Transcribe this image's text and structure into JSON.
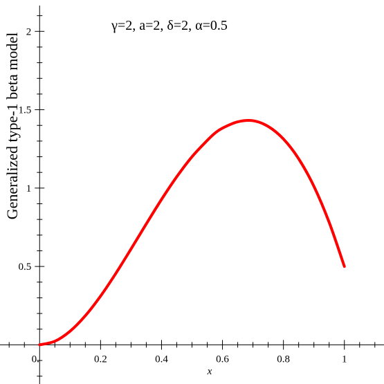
{
  "chart_data": {
    "type": "line",
    "title": "",
    "annotation": "γ=2, a=2, δ=2, α=0.5",
    "xlabel": "x",
    "ylabel": "Generalized type-1 beta model",
    "xlim": [
      -0.13,
      1.13
    ],
    "ylim": [
      -0.25,
      2.2
    ],
    "grid": false,
    "x_ticks": [
      0.2,
      0.4,
      0.6,
      0.8,
      1
    ],
    "x_tick_labels": [
      "0.2",
      "0.4",
      "0.6",
      "0.8",
      "1"
    ],
    "y_ticks": [
      0.5,
      1,
      1.5,
      2
    ],
    "y_tick_labels": [
      "0.5",
      "1",
      "1.5",
      "2"
    ],
    "origin_label": "0.",
    "series": [
      {
        "color": "#ff0000",
        "x": [
          0,
          0.05,
          0.1,
          0.15,
          0.2,
          0.25,
          0.3,
          0.35,
          0.4,
          0.45,
          0.5,
          0.55,
          0.575,
          0.6,
          0.65,
          0.7,
          0.75,
          0.8,
          0.85,
          0.9,
          0.95,
          1
        ],
        "y": [
          0,
          0.0227,
          0.087,
          0.1856,
          0.311,
          0.4556,
          0.6116,
          0.7716,
          0.9276,
          1.0724,
          1.2,
          1.3041,
          1.35,
          1.3826,
          1.4229,
          1.4299,
          1.3932,
          1.3131,
          1.1869,
          1.0115,
          0.7818,
          0.5
        ]
      }
    ]
  }
}
